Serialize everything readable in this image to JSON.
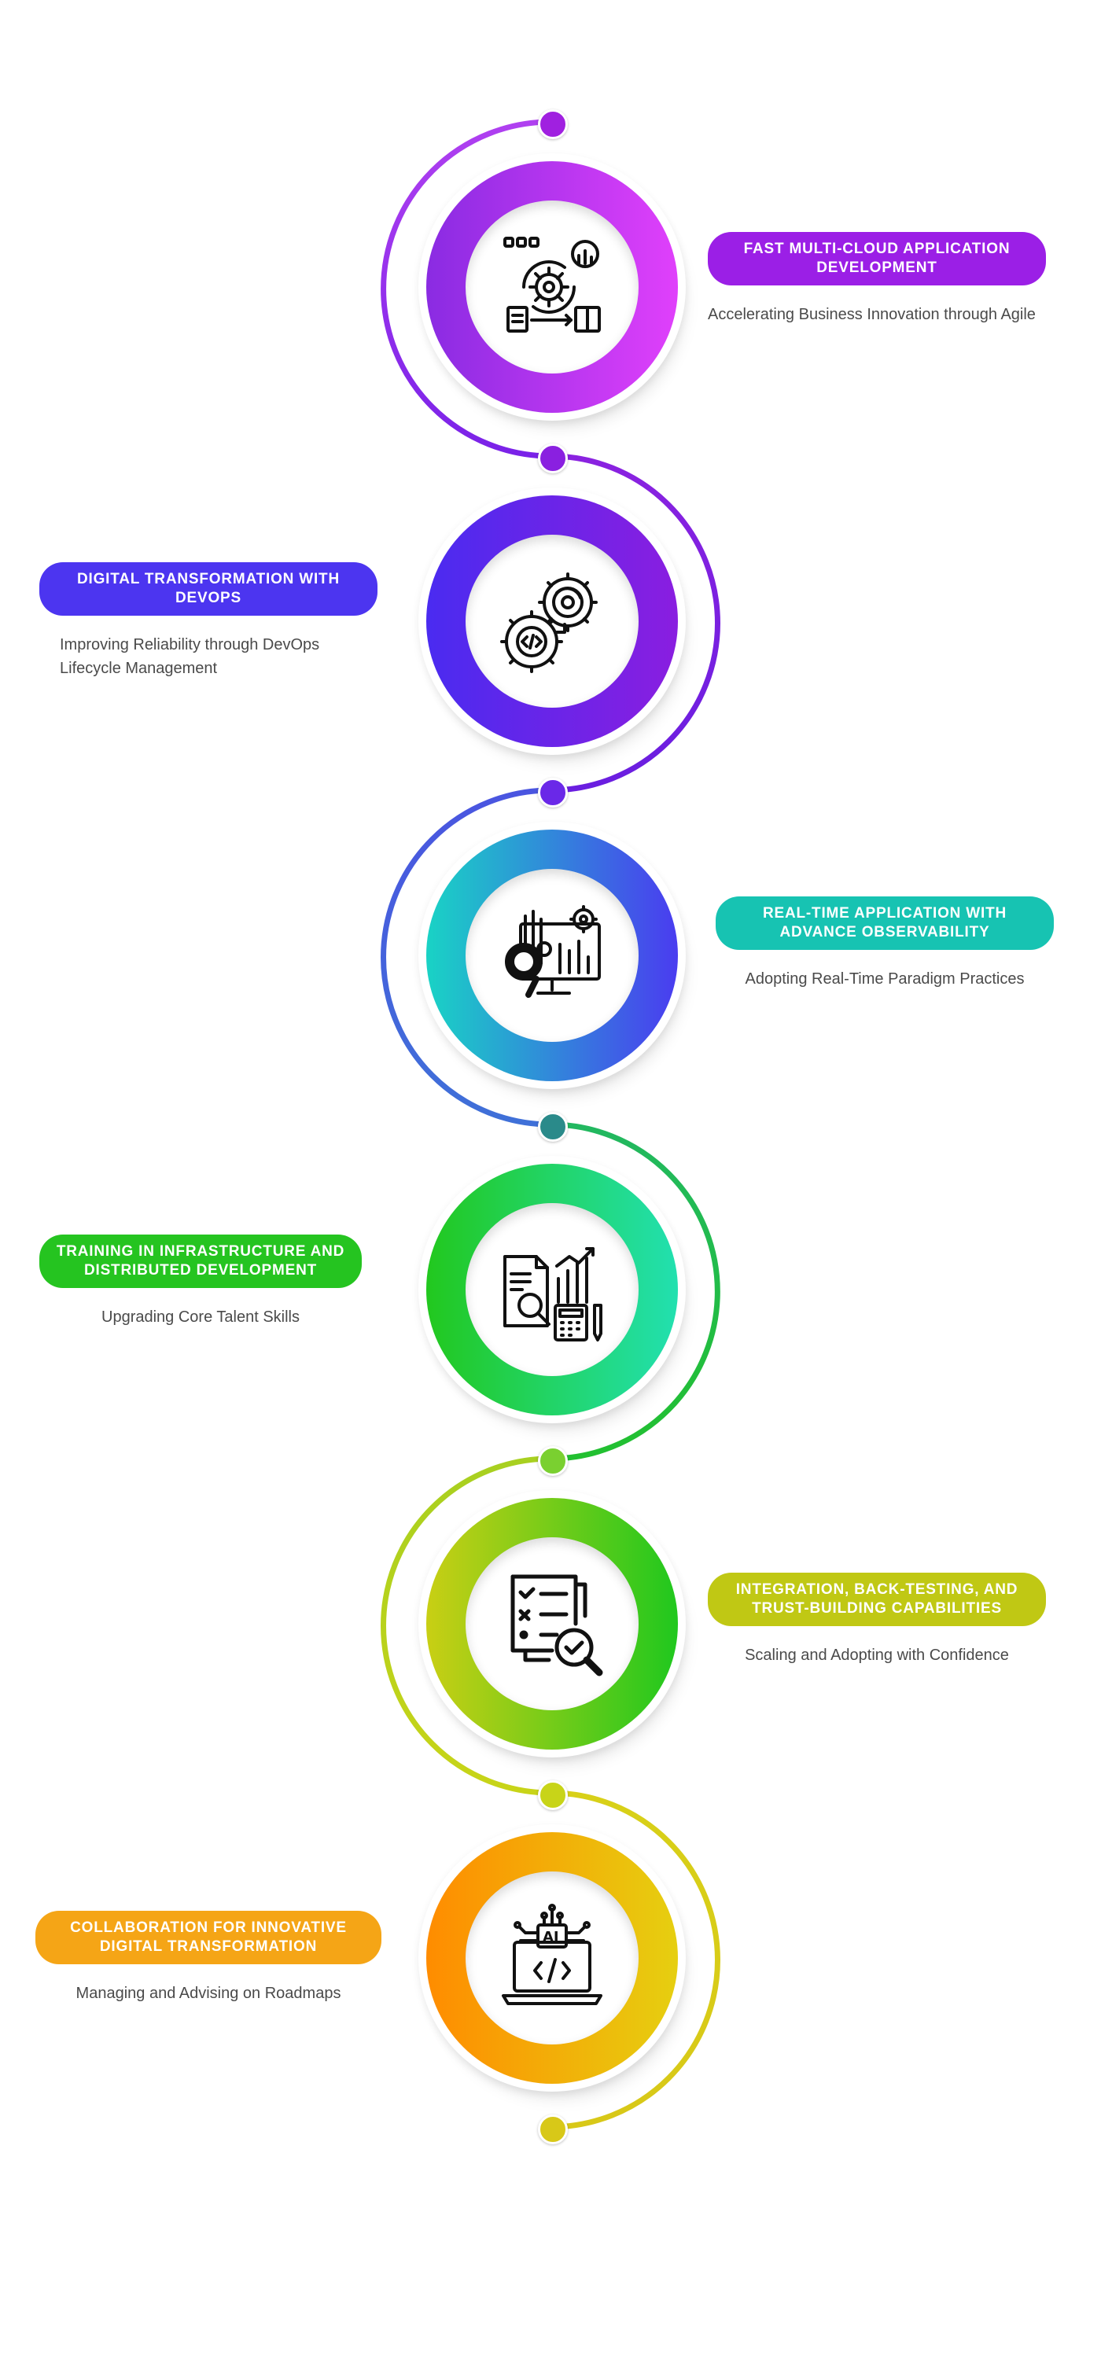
{
  "steps": [
    {
      "title": "FAST MULTI-CLOUD APPLICATION DEVELOPMENT",
      "description": "Accelerating Business Innovation through Agile",
      "side": "right",
      "icon": "agile-gear-workflow-icon",
      "colors": {
        "ring_start": "#8a2be2",
        "ring_end": "#e040fb",
        "pill": "#9b1fe6"
      }
    },
    {
      "title": "DIGITAL TRANSFORMATION WITH DEVOPS",
      "description": "Improving Reliability through DevOps Lifecycle Management",
      "side": "left",
      "icon": "devops-gears-icon",
      "colors": {
        "ring_start": "#4a2bf0",
        "ring_end": "#8a1ee0",
        "pill": "#4c35f0"
      }
    },
    {
      "title": "REAL-TIME APPLICATION WITH ADVANCE OBSERVABILITY",
      "description": "Adopting Real-Time Paradigm Practices",
      "side": "right",
      "icon": "monitor-analytics-icon",
      "colors": {
        "ring_start": "#19d3c5",
        "ring_end": "#4a3cf0",
        "pill": "#17c3b2"
      }
    },
    {
      "title": "TRAINING IN INFRASTRUCTURE AND DISTRIBUTED DEVELOPMENT",
      "description": "Upgrading Core Talent Skills",
      "side": "left",
      "icon": "report-calculator-icon",
      "colors": {
        "ring_start": "#22c81e",
        "ring_end": "#22e0b0",
        "pill": "#25c420"
      }
    },
    {
      "title": "INTEGRATION, BACK-TESTING, AND TRUST-BUILDING CAPABILITIES",
      "description": "Scaling and Adopting with Confidence",
      "side": "right",
      "icon": "checklist-magnifier-icon",
      "colors": {
        "ring_start": "#c9cf14",
        "ring_end": "#20c81e",
        "pill": "#c0c814"
      }
    },
    {
      "title": "COLLABORATION FOR INNOVATIVE DIGITAL TRANSFORMATION",
      "description": "Managing and Advising on Roadmaps",
      "side": "left",
      "icon": "ai-laptop-icon",
      "colors": {
        "ring_start": "#ff8c00",
        "ring_end": "#e6cf10",
        "pill": "#f5a516"
      }
    }
  ]
}
